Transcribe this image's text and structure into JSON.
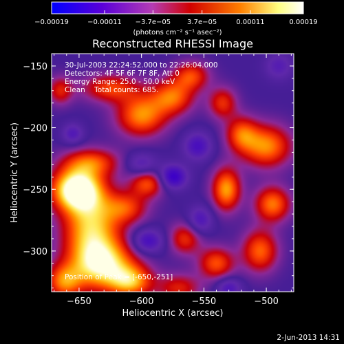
{
  "chart_data": {
    "type": "heatmap",
    "title": "Reconstructed RHESSI Image",
    "xlabel": "Heliocentric X (arcsec)",
    "ylabel": "Heliocentric Y (arcsec)",
    "xlim": [
      -672,
      -478
    ],
    "ylim": [
      -333,
      -140
    ],
    "x_ticks": [
      -650,
      -600,
      -550,
      -500
    ],
    "y_ticks": [
      -150,
      -200,
      -250,
      -300
    ],
    "x_tick_labels": [
      "−650",
      "−600",
      "−550",
      "−500"
    ],
    "y_tick_labels": [
      "−150",
      "−200",
      "−250",
      "−300"
    ],
    "grid": false,
    "colorbar": {
      "range": [
        -0.00019,
        0.00019
      ],
      "ticks": [
        -0.00019,
        -0.00011,
        -3.7e-05,
        3.7e-05,
        0.00011,
        0.00019
      ],
      "tick_labels": [
        "−0.00019",
        "−0.00011",
        "−3.7e−05",
        "3.7e−05",
        "0.00011",
        "0.00019"
      ],
      "units": "(photons cm⁻² s⁻¹ asec⁻²)",
      "colors": [
        "#0000ff",
        "#5a00d8",
        "#b43cb4",
        "#d20000",
        "#ff8000",
        "#ffff80",
        "#ffffff"
      ]
    },
    "annotations": [
      "30-Jul-2003 22:24:52.000 to 22:26:04.000",
      "Detectors: 4F 5F 6F 7F 8F, Att 0",
      "Energy Range: 25.0 - 50.0 keV",
      "Clean    Total counts: 685."
    ],
    "peak_label": "Position of Peak = [-650,-251]",
    "peak": {
      "x": -650,
      "y": -251
    },
    "blobs": [
      {
        "x": -652,
        "y": -250,
        "sx": 14,
        "sy": 12,
        "a": 1.3
      },
      {
        "x": -640,
        "y": -282,
        "sx": 16,
        "sy": 22,
        "a": 0.95
      },
      {
        "x": -630,
        "y": -312,
        "sx": 18,
        "sy": 14,
        "a": 0.95
      },
      {
        "x": -608,
        "y": -325,
        "sx": 12,
        "sy": 9,
        "a": 0.75
      },
      {
        "x": -662,
        "y": -325,
        "sx": 10,
        "sy": 10,
        "a": 0.7
      },
      {
        "x": -612,
        "y": -265,
        "sx": 12,
        "sy": 9,
        "a": 0.55
      },
      {
        "x": -595,
        "y": -245,
        "sx": 10,
        "sy": 8,
        "a": 0.65
      },
      {
        "x": -640,
        "y": -228,
        "sx": 16,
        "sy": 8,
        "a": 0.6
      },
      {
        "x": -600,
        "y": -190,
        "sx": 14,
        "sy": 12,
        "a": 0.8
      },
      {
        "x": -575,
        "y": -175,
        "sx": 12,
        "sy": 10,
        "a": 0.7
      },
      {
        "x": -560,
        "y": -158,
        "sx": 10,
        "sy": 8,
        "a": 0.6
      },
      {
        "x": -625,
        "y": -168,
        "sx": 16,
        "sy": 8,
        "a": 0.6
      },
      {
        "x": -535,
        "y": -180,
        "sx": 8,
        "sy": 9,
        "a": 0.55
      },
      {
        "x": -520,
        "y": -205,
        "sx": 9,
        "sy": 10,
        "a": 0.6
      },
      {
        "x": -500,
        "y": -215,
        "sx": 14,
        "sy": 12,
        "a": 0.8
      },
      {
        "x": -532,
        "y": -250,
        "sx": 8,
        "sy": 12,
        "a": 0.85
      },
      {
        "x": -495,
        "y": -262,
        "sx": 10,
        "sy": 10,
        "a": 0.75
      },
      {
        "x": -565,
        "y": -290,
        "sx": 9,
        "sy": 9,
        "a": 0.55
      },
      {
        "x": -540,
        "y": -310,
        "sx": 10,
        "sy": 9,
        "a": 0.65
      },
      {
        "x": -505,
        "y": -300,
        "sx": 10,
        "sy": 12,
        "a": 0.7
      },
      {
        "x": -570,
        "y": -330,
        "sx": 12,
        "sy": 8,
        "a": 0.5
      },
      {
        "x": -665,
        "y": -170,
        "sx": 7,
        "sy": 8,
        "a": 0.5
      },
      {
        "x": -575,
        "y": -240,
        "sx": 8,
        "sy": 7,
        "a": -0.7
      },
      {
        "x": -555,
        "y": -215,
        "sx": 8,
        "sy": 8,
        "a": -0.5
      },
      {
        "x": -595,
        "y": -292,
        "sx": 9,
        "sy": 7,
        "a": -0.55
      },
      {
        "x": -553,
        "y": -275,
        "sx": 7,
        "sy": 8,
        "a": -0.45
      },
      {
        "x": -600,
        "y": -230,
        "sx": 9,
        "sy": 7,
        "a": -0.4
      },
      {
        "x": -530,
        "y": -330,
        "sx": 7,
        "sy": 6,
        "a": -0.45
      },
      {
        "x": -490,
        "y": -150,
        "sx": 8,
        "sy": 8,
        "a": -0.35
      },
      {
        "x": -655,
        "y": -205,
        "sx": 6,
        "sy": 6,
        "a": -0.4
      }
    ]
  },
  "footer": {
    "timestamp": "2-Jun-2013 14:31"
  }
}
